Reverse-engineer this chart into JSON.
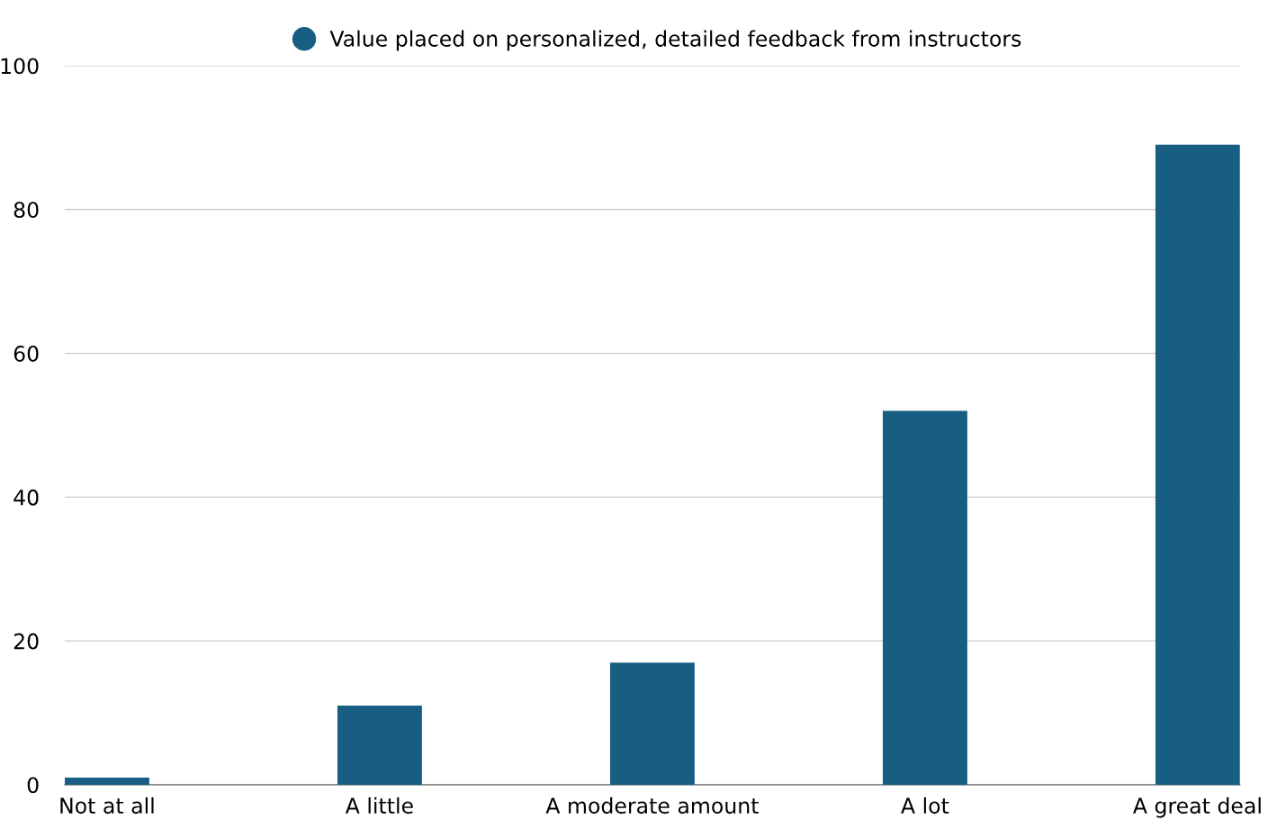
{
  "chart_data": {
    "type": "bar",
    "categories": [
      "Not at all",
      "A little",
      "A moderate amount",
      "A lot",
      "A great deal"
    ],
    "series": [
      {
        "name": "Value placed on personalized, detailed feedback from instructors",
        "color": "#175e82",
        "values": [
          1,
          11,
          17,
          52,
          89
        ]
      }
    ],
    "ylim": [
      0,
      100
    ],
    "yticks": [
      0,
      20,
      40,
      60,
      80,
      100
    ],
    "grid": "y",
    "legend": "top"
  }
}
